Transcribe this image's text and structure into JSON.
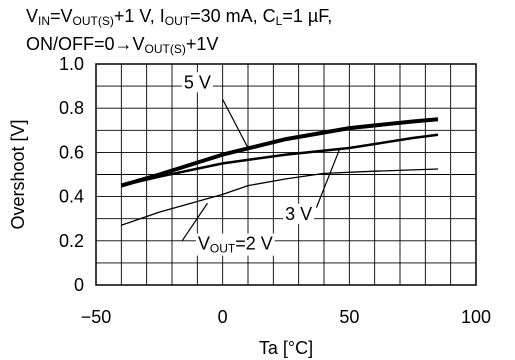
{
  "header": {
    "title_line_1": [
      {
        "t": "V"
      },
      {
        "s": "IN"
      },
      {
        "t": "=V"
      },
      {
        "s": "OUT(S)"
      },
      {
        "t": "+1 V, I"
      },
      {
        "s": "OUT"
      },
      {
        "t": "=30 mA, C"
      },
      {
        "s": "L"
      },
      {
        "t": "=1 µF,"
      }
    ],
    "title_line_2": [
      {
        "t": "ON/OFF=0→V"
      },
      {
        "s": "OUT(S)"
      },
      {
        "t": "+1V"
      }
    ]
  },
  "chart_data": {
    "type": "line",
    "xlabel": "Ta [°C]",
    "ylabel": "Overshoot [V]",
    "xlim": [
      -50,
      100
    ],
    "ylim": [
      0,
      1.0
    ],
    "x_ticks": [
      -50,
      0,
      50,
      100
    ],
    "x_tick_labels": [
      "−50",
      "0",
      "50",
      "100"
    ],
    "y_ticks": [
      0,
      0.2,
      0.4,
      0.6,
      0.8,
      1.0
    ],
    "y_tick_labels": [
      "0",
      "0.2",
      "0.4",
      "0.6",
      "0.8",
      "1.0"
    ],
    "grid": true,
    "legend": "none",
    "series": [
      {
        "name": "5 V",
        "label_text": "5 V",
        "line_weight": "heavy",
        "x": [
          -40,
          -25,
          0,
          25,
          50,
          75,
          85
        ],
        "y": [
          0.45,
          0.5,
          0.59,
          0.66,
          0.71,
          0.74,
          0.75
        ]
      },
      {
        "name": "3 V",
        "label_text": "3 V",
        "line_weight": "medium",
        "x": [
          -40,
          -25,
          0,
          25,
          50,
          75,
          85
        ],
        "y": [
          0.45,
          0.49,
          0.55,
          0.59,
          0.62,
          0.665,
          0.68
        ]
      },
      {
        "name": "VOUT=2 V",
        "label_parts": [
          {
            "t": "V"
          },
          {
            "s": "OUT"
          },
          {
            "t": "=2 V"
          }
        ],
        "line_weight": "thin",
        "x": [
          -40,
          -25,
          0,
          10,
          25,
          40,
          60,
          85
        ],
        "y": [
          0.27,
          0.33,
          0.41,
          0.45,
          0.48,
          0.505,
          0.515,
          0.525
        ]
      }
    ],
    "annotations": [
      {
        "series": 0,
        "text_at": [
          -10,
          0.89
        ],
        "leader": [
          [
            0,
            0.84
          ],
          [
            10,
            0.62
          ]
        ]
      },
      {
        "series": 1,
        "text_at": [
          30,
          0.295
        ],
        "leader": [
          [
            37,
            0.35
          ],
          [
            46,
            0.61
          ]
        ]
      },
      {
        "series": 2,
        "text_at": [
          5,
          0.16
        ],
        "leader": [
          [
            -16,
            0.2
          ],
          [
            -6,
            0.37
          ]
        ]
      }
    ]
  }
}
